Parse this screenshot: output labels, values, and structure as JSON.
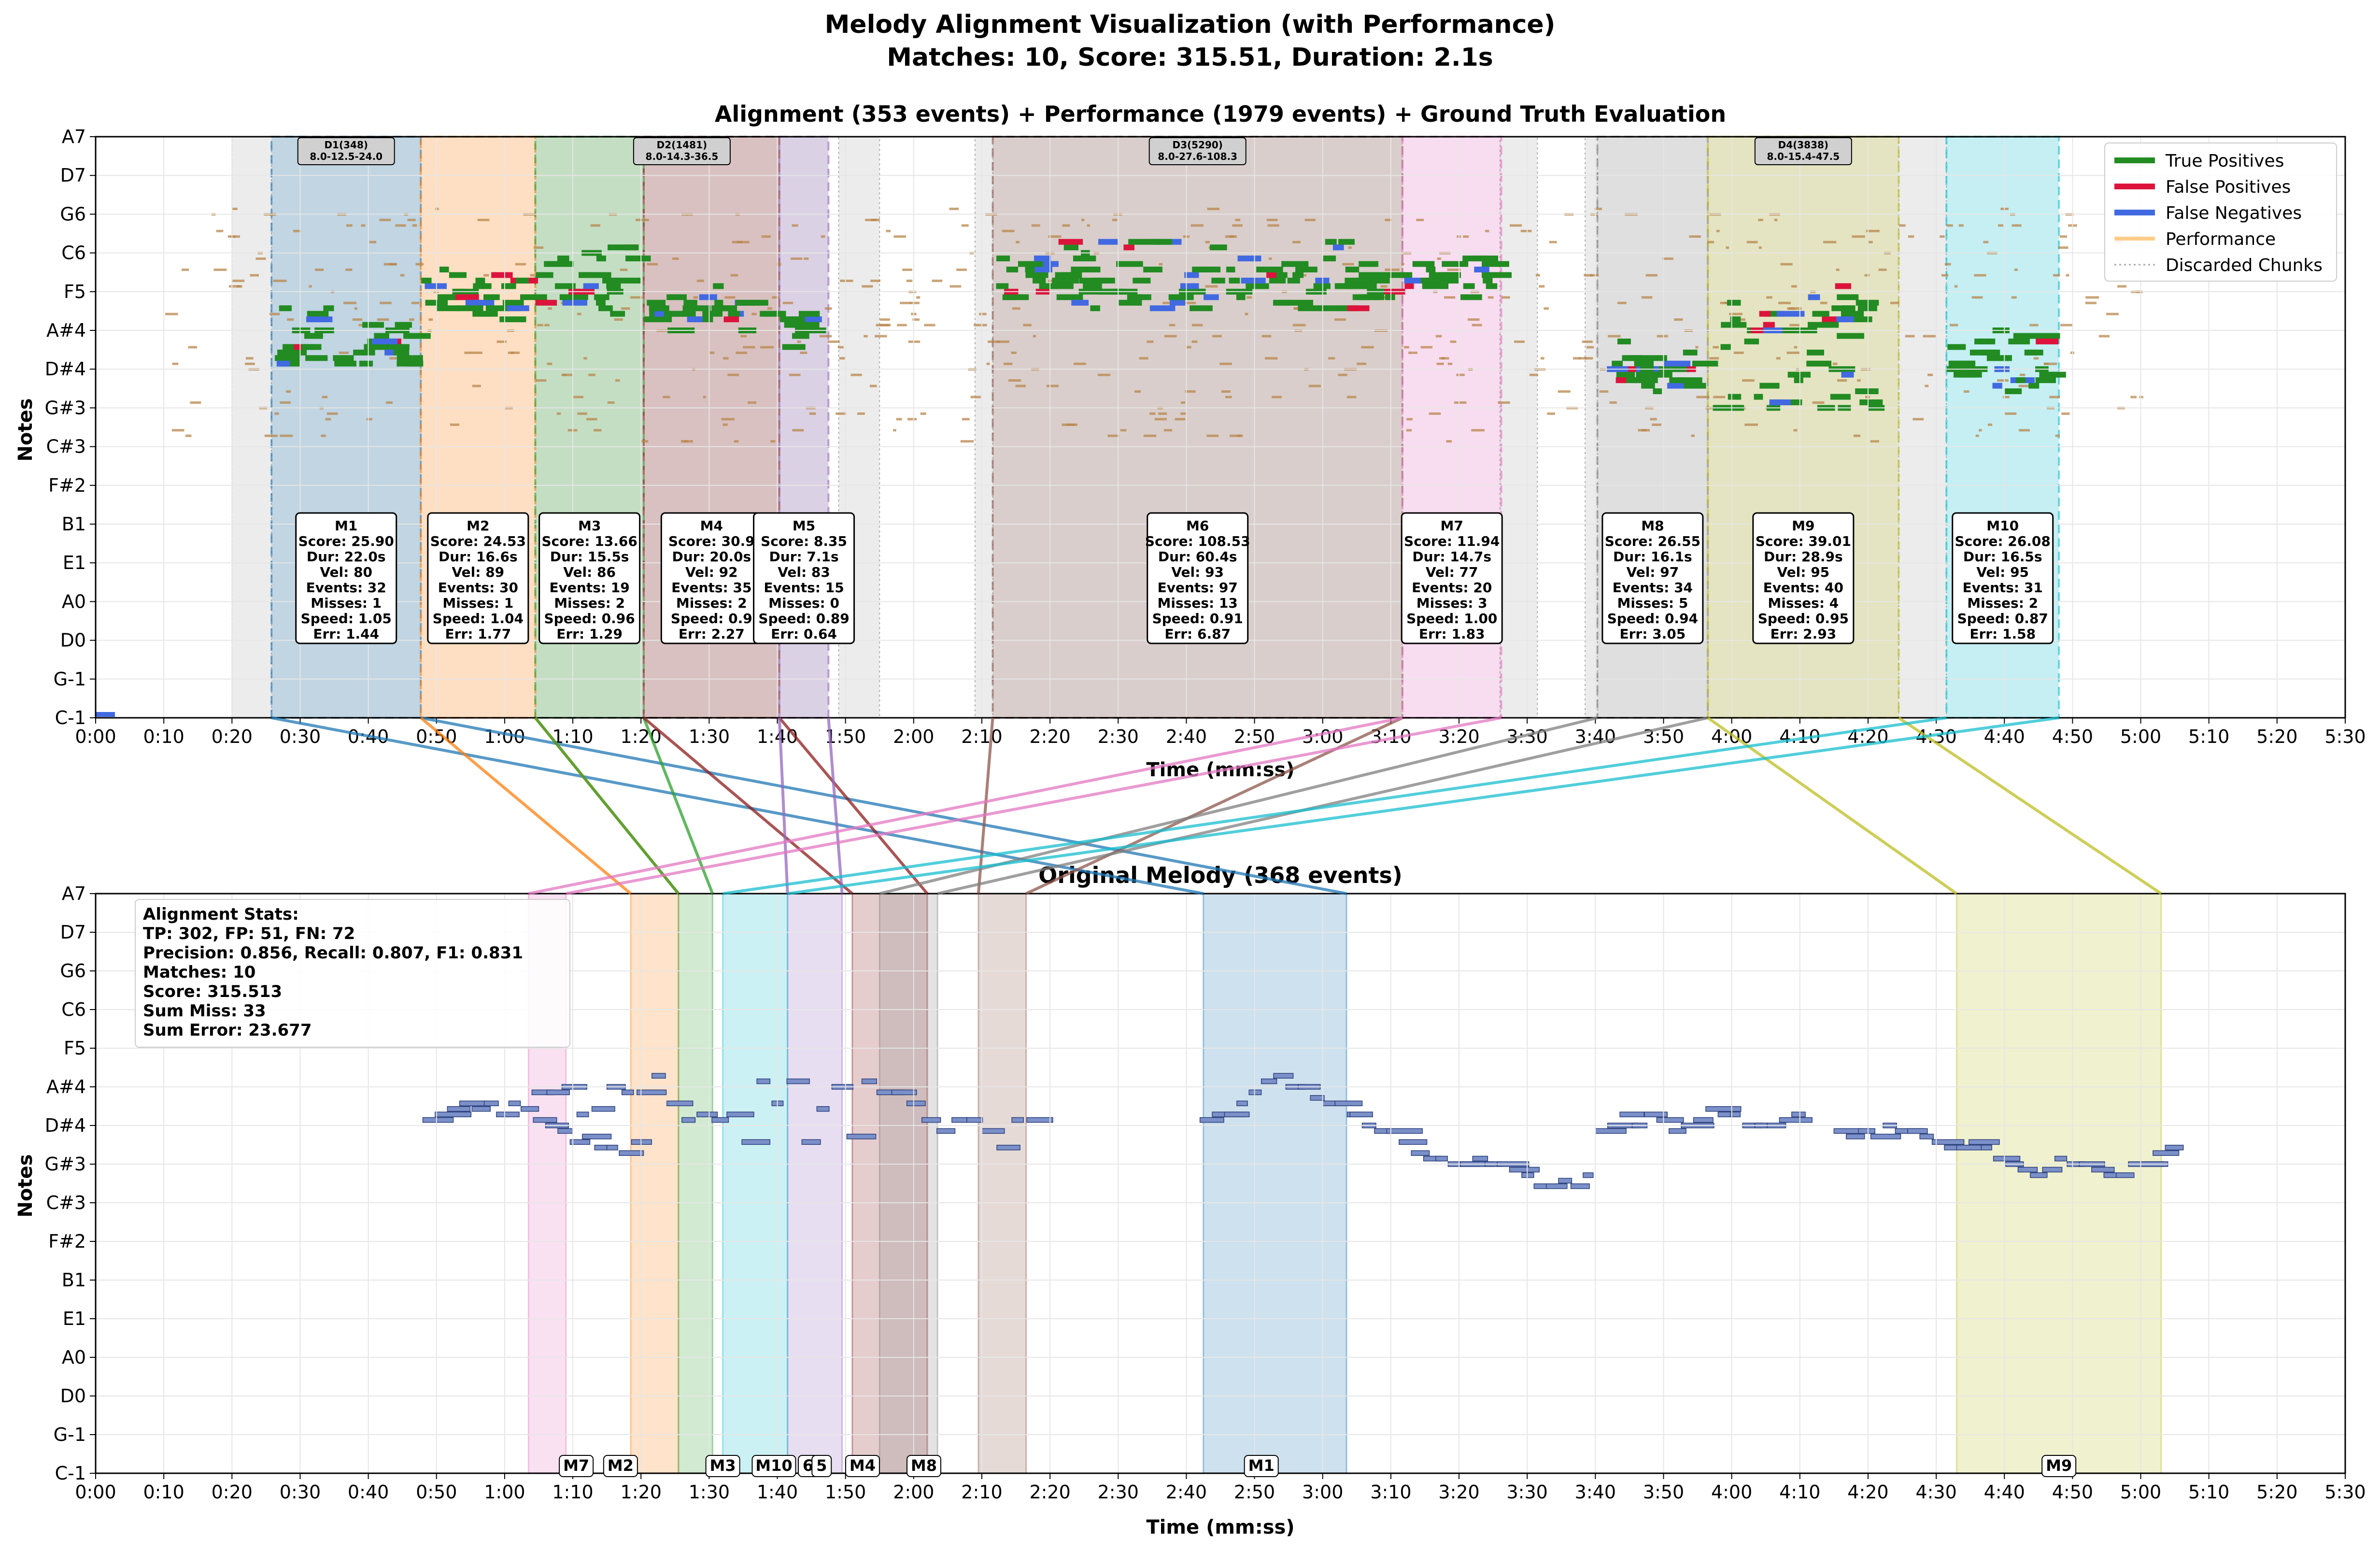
{
  "figure": {
    "title_line1": "Melody Alignment Visualization (with Performance)",
    "title_line2": "Matches: 10, Score: 315.51, Duration: 2.1s"
  },
  "colors": {
    "true_positive": "#228B22",
    "false_positive": "#DC143C",
    "false_negative": "#4169E1",
    "performance": "#FFCC88",
    "discarded": "#C8C8C8",
    "melody_note": "#7B8FC8",
    "match_palette": [
      "#1f77b4",
      "#ff7f0e",
      "#2ca02c",
      "#8c1c1c",
      "#9467bd",
      "#8c564b",
      "#e377c2",
      "#7f7f7f",
      "#bcbd22",
      "#17becf"
    ]
  },
  "chart_data": [
    {
      "type": "scatter",
      "title": "Alignment (353 events) + Performance (1979 events) + Ground Truth Evaluation",
      "xlabel": "Time (mm:ss)",
      "ylabel": "Notes",
      "xlim": [
        0,
        330
      ],
      "grid": true,
      "legend_position": "top-right",
      "x_ticks": [
        "0:00",
        "0:10",
        "0:20",
        "0:30",
        "0:40",
        "0:50",
        "1:00",
        "1:10",
        "1:20",
        "1:30",
        "1:40",
        "1:50",
        "2:00",
        "2:10",
        "2:20",
        "2:30",
        "2:40",
        "2:50",
        "3:00",
        "3:10",
        "3:20",
        "3:30",
        "3:40",
        "3:50",
        "4:00",
        "4:10",
        "4:20",
        "4:30",
        "4:40",
        "4:50",
        "5:00",
        "5:10",
        "5:20",
        "5:30"
      ],
      "y_ticks": [
        "C-1",
        "G-1",
        "D0",
        "A0",
        "E1",
        "B1",
        "F#2",
        "C#3",
        "G#3",
        "D#4",
        "A#4",
        "F5",
        "C6",
        "G6",
        "D7",
        "A7"
      ],
      "y_tick_midi": [
        0,
        7,
        14,
        21,
        28,
        35,
        42,
        49,
        56,
        63,
        70,
        77,
        84,
        91,
        98,
        105
      ],
      "legend": [
        "True Positives",
        "False Positives",
        "False Negatives",
        "Performance",
        "Discarded Chunks"
      ],
      "discarded_chunks": [
        {
          "x0": 20,
          "x1": 25.8
        },
        {
          "x0": 109,
          "x1": 115
        },
        {
          "x0": 129,
          "x1": 131.6
        },
        {
          "x0": 206,
          "x1": 211.5
        },
        {
          "x0": 218.5,
          "x1": 220.3
        },
        {
          "x0": 264.5,
          "x1": 271.5
        }
      ],
      "detections": [
        {
          "label": "D1(348)",
          "range": "8.0-12.5-24.0",
          "x0": 25.8,
          "x1": 47.7
        },
        {
          "label": "D2(1481)",
          "range": "8.0-14.3-36.5",
          "x0": 64.5,
          "x1": 107.5
        },
        {
          "label": "D3(5290)",
          "range": "8.0-27.6-108.3",
          "x0": 131.6,
          "x1": 191.7
        },
        {
          "label": "D4(3838)",
          "range": "8.0-15.4-47.5",
          "x0": 236.5,
          "x1": 264.5
        }
      ],
      "matches": [
        {
          "id": "M1",
          "x0": 25.8,
          "x1": 47.7,
          "score": "Score: 25.90",
          "dur": "Dur: 22.0s",
          "vel": "Vel: 80",
          "events": "Events: 32",
          "misses": "Misses: 1",
          "speed": "Speed: 1.05",
          "err": "Err: 1.44"
        },
        {
          "id": "M2",
          "x0": 47.7,
          "x1": 64.5,
          "score": "Score: 24.53",
          "dur": "Dur: 16.6s",
          "vel": "Vel: 89",
          "events": "Events: 30",
          "misses": "Misses: 1",
          "speed": "Speed: 1.04",
          "err": "Err: 1.77"
        },
        {
          "id": "M3",
          "x0": 64.5,
          "x1": 80.4,
          "score": "Score: 13.66",
          "dur": "Dur: 15.5s",
          "vel": "Vel: 86",
          "events": "Events: 19",
          "misses": "Misses: 2",
          "speed": "Speed: 0.96",
          "err": "Err: 1.29"
        },
        {
          "id": "M4",
          "x0": 80.4,
          "x1": 100.3,
          "score": "Score: 30.9",
          "dur": "Dur: 20.0s",
          "vel": "Vel: 92",
          "events": "Events: 35",
          "misses": "Misses: 2",
          "speed": "Speed: 0.9",
          "err": "Err: 2.27"
        },
        {
          "id": "M5",
          "x0": 100.3,
          "x1": 107.5,
          "score": "Score: 8.35",
          "dur": "Dur: 7.1s",
          "vel": "Vel: 83",
          "events": "Events: 15",
          "misses": "Misses: 0",
          "speed": "Speed: 0.89",
          "err": "Err: 0.64"
        },
        {
          "id": "M6",
          "x0": 131.6,
          "x1": 191.7,
          "score": "Score: 108.53",
          "dur": "Dur: 60.4s",
          "vel": "Vel: 93",
          "events": "Events: 97",
          "misses": "Misses: 13",
          "speed": "Speed: 0.91",
          "err": "Err: 6.87"
        },
        {
          "id": "M7",
          "x0": 191.7,
          "x1": 206.2,
          "score": "Score: 11.94",
          "dur": "Dur: 14.7s",
          "vel": "Vel: 77",
          "events": "Events: 20",
          "misses": "Misses: 3",
          "speed": "Speed: 1.00",
          "err": "Err: 1.83"
        },
        {
          "id": "M8",
          "x0": 220.3,
          "x1": 236.5,
          "score": "Score: 26.55",
          "dur": "Dur: 16.1s",
          "vel": "Vel: 97",
          "events": "Events: 34",
          "misses": "Misses: 5",
          "speed": "Speed: 0.94",
          "err": "Err: 3.05"
        },
        {
          "id": "M9",
          "x0": 236.5,
          "x1": 264.5,
          "score": "Score: 39.01",
          "dur": "Dur: 28.9s",
          "vel": "Vel: 95",
          "events": "Events: 40",
          "misses": "Misses: 4",
          "speed": "Speed: 0.95",
          "err": "Err: 2.93"
        },
        {
          "id": "M10",
          "x0": 271.5,
          "x1": 288,
          "score": "Score: 26.08",
          "dur": "Dur: 16.5s",
          "vel": "Vel: 95",
          "events": "Events: 31",
          "misses": "Misses: 2",
          "speed": "Speed: 0.87",
          "err": "Err: 1.58"
        }
      ],
      "melody_regions": [
        {
          "id": "M1",
          "x0": 162.5,
          "x1": 183.5
        },
        {
          "id": "M2",
          "x0": 78.5,
          "x1": 85.5
        },
        {
          "id": "M3",
          "x0": 85.5,
          "x1": 90.5
        },
        {
          "id": "M4",
          "x0": 111,
          "x1": 122
        },
        {
          "id": "M5",
          "x0": 101.5,
          "x1": 109.5
        },
        {
          "id": "M6",
          "x0": 129.5,
          "x1": 136.5
        },
        {
          "id": "M7",
          "x0": 63.5,
          "x1": 69
        },
        {
          "id": "M8",
          "x0": 115,
          "x1": 123.5
        },
        {
          "id": "M9",
          "x0": 273,
          "x1": 303
        },
        {
          "id": "M10",
          "x0": 92,
          "x1": 101.5
        }
      ]
    },
    {
      "type": "scatter",
      "title": "Original Melody (368 events)",
      "xlabel": "Time (mm:ss)",
      "ylabel": "Notes",
      "xlim": [
        0,
        330
      ],
      "grid": true,
      "stats_lines": [
        "Alignment Stats:",
        "TP: 302, FP: 51, FN: 72",
        "Precision: 0.856, Recall: 0.807, F1: 0.831",
        "Matches: 10",
        "Score: 315.513",
        "Sum Miss: 33",
        "Sum Error: 23.677"
      ],
      "bottom_labels": [
        {
          "text": "M7",
          "x": 70.5
        },
        {
          "text": "M2",
          "x": 77
        },
        {
          "text": "M3",
          "x": 92
        },
        {
          "text": "M10",
          "x": 99.5
        },
        {
          "text": "6",
          "x": 104.5
        },
        {
          "text": "5",
          "x": 106.5
        },
        {
          "text": "M4",
          "x": 112.5
        },
        {
          "text": "M8",
          "x": 121.5
        },
        {
          "text": "M1",
          "x": 171
        },
        {
          "text": "M9",
          "x": 288
        }
      ]
    }
  ]
}
